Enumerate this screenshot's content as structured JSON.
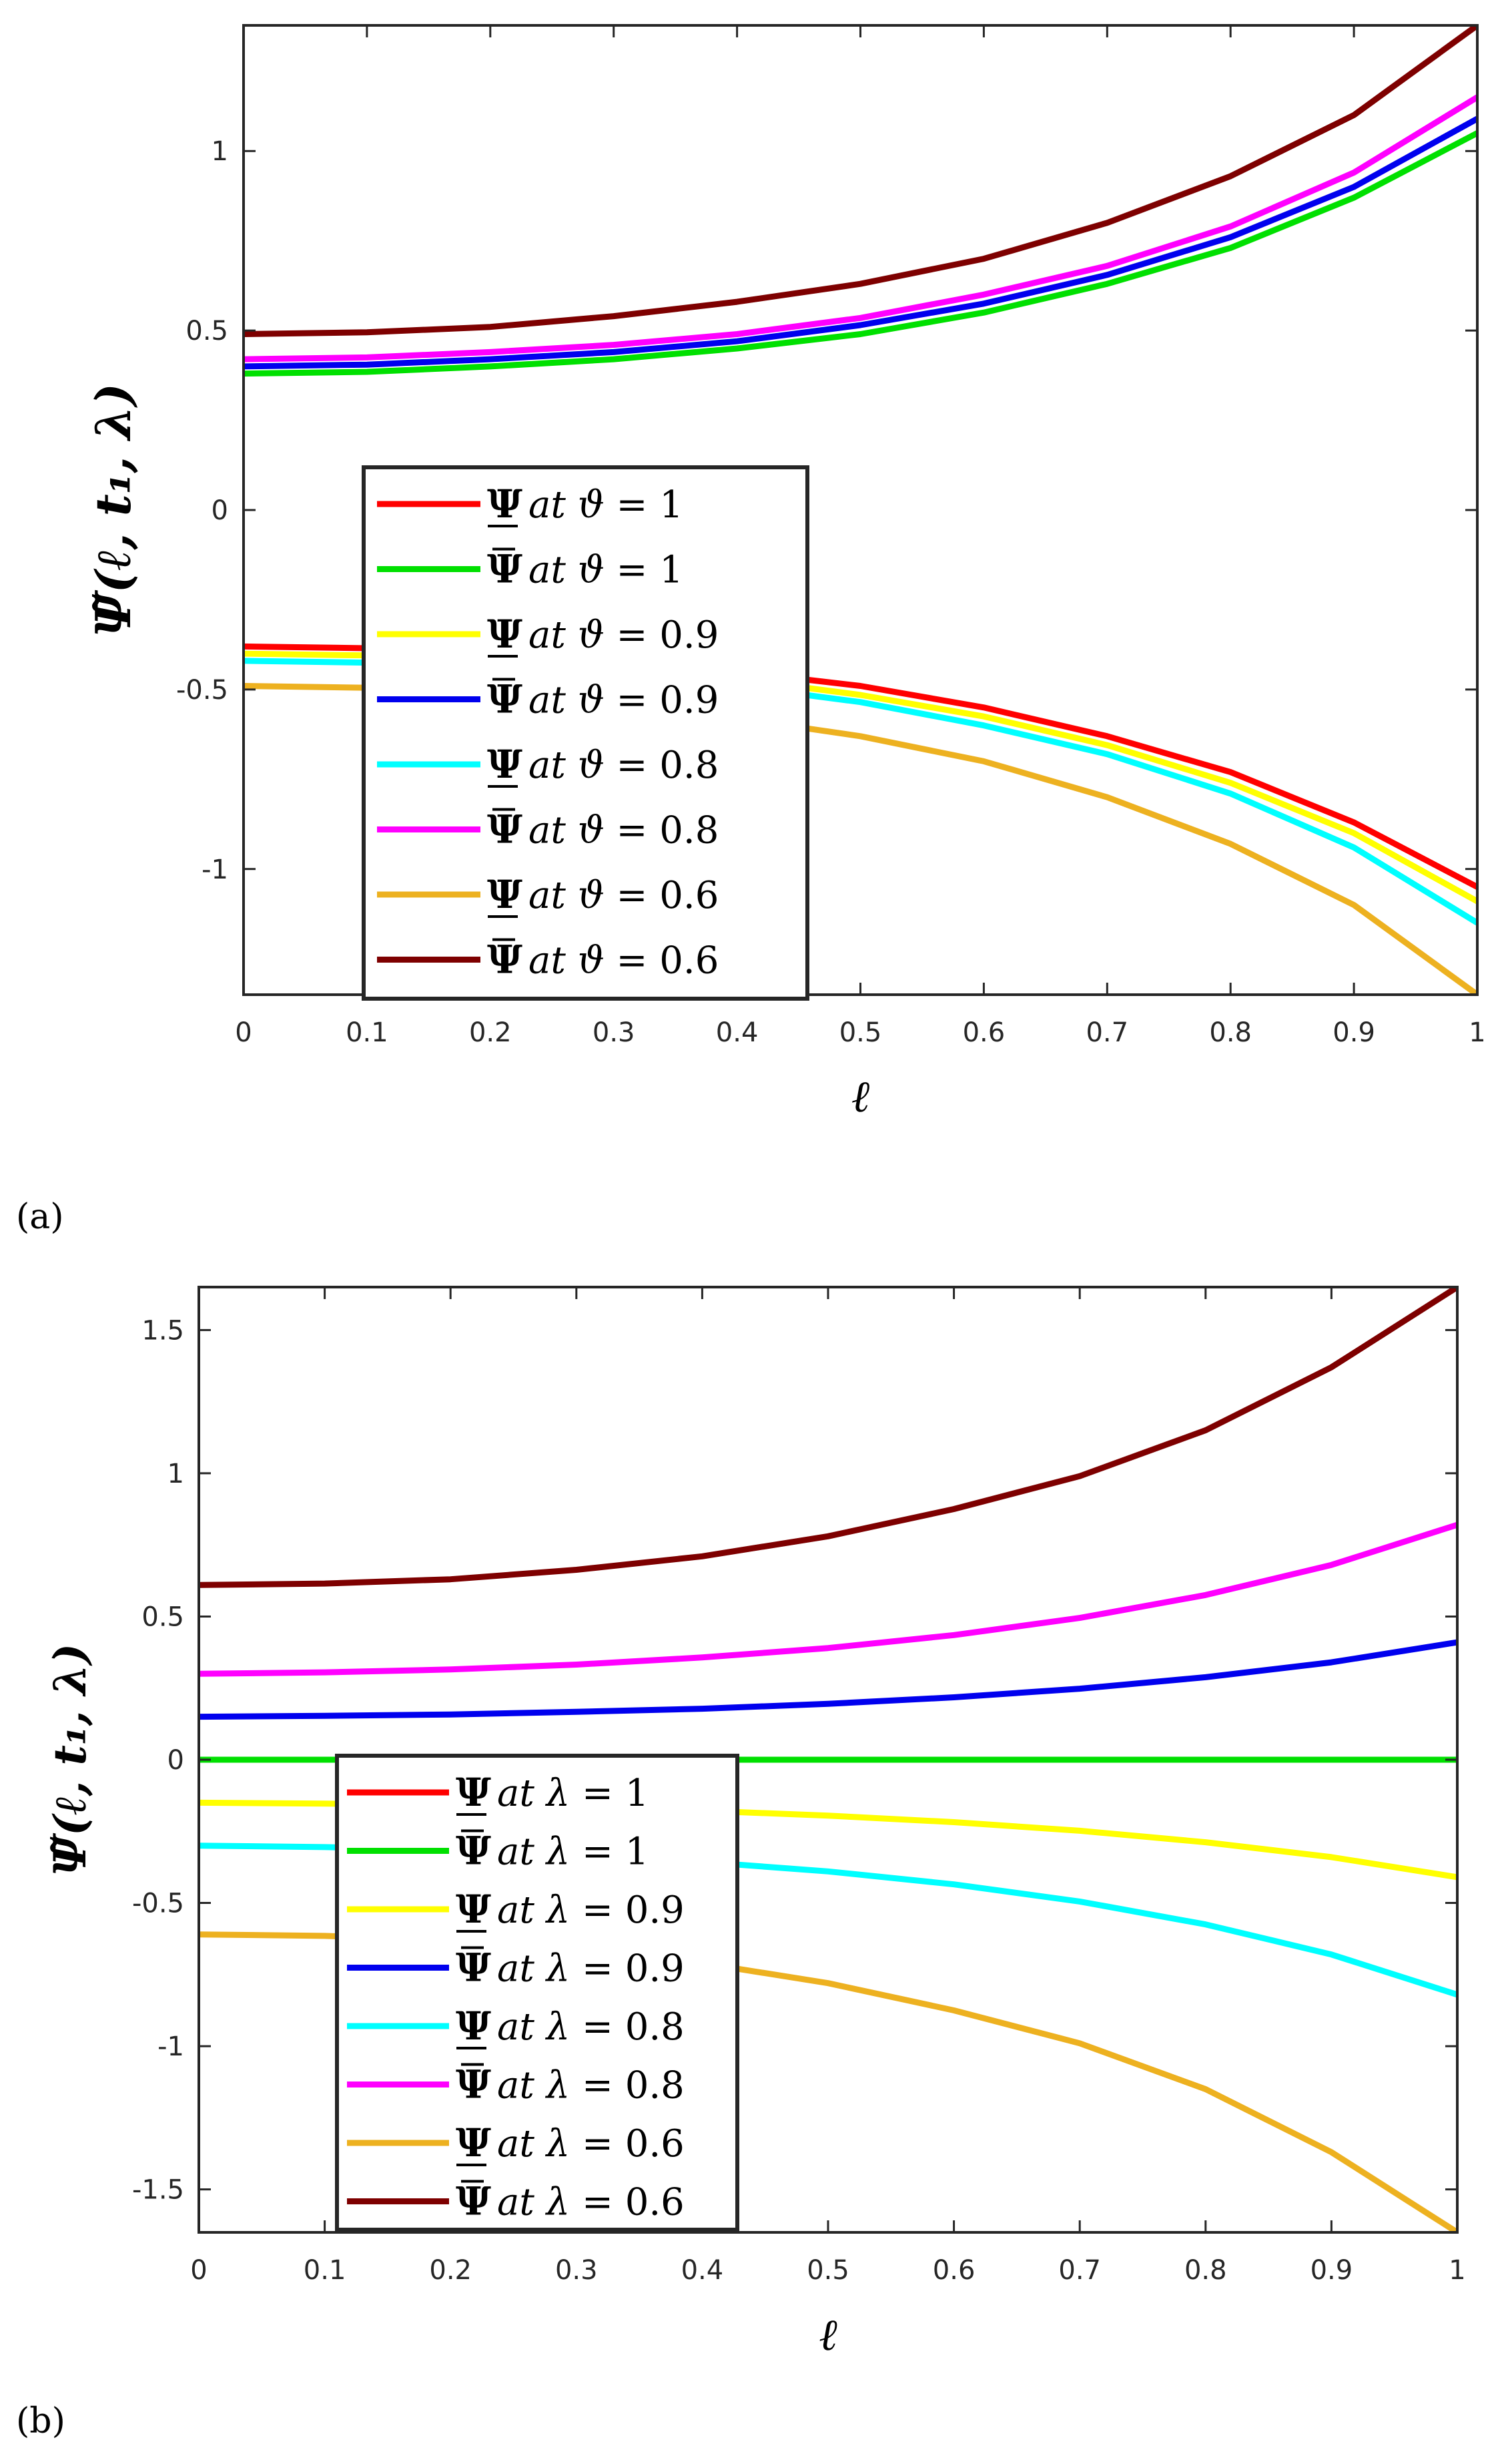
{
  "chart_data": [
    {
      "type": "line",
      "panel_label": "(a)",
      "xlabel": "ℓ",
      "ylabel": "Ψ̃(ℓ, t₁, λ)",
      "xlim": [
        0,
        1
      ],
      "ylim": [
        -1.35,
        1.35
      ],
      "xticks": [
        "0",
        "0.1",
        "0.2",
        "0.3",
        "0.4",
        "0.5",
        "0.6",
        "0.7",
        "0.8",
        "0.9",
        "1"
      ],
      "yticks": [
        {
          "value": 1,
          "label": "1"
        },
        {
          "value": 0.5,
          "label": "0.5"
        },
        {
          "value": 0,
          "label": "0"
        },
        {
          "value": -0.5,
          "label": "-0.5"
        },
        {
          "value": -1,
          "label": "-1"
        }
      ],
      "legend_position": "center-left",
      "x": [
        0,
        0.1,
        0.2,
        0.3,
        0.4,
        0.5,
        0.6,
        0.7,
        0.8,
        0.9,
        1
      ],
      "series": [
        {
          "name": "Ψ at ϑ = 1",
          "symbol": "Ψ",
          "bound": "lower",
          "param": "ϑ",
          "value": "1",
          "color": "#ff0000",
          "values": [
            -0.38,
            -0.385,
            -0.4,
            -0.42,
            -0.45,
            -0.49,
            -0.55,
            -0.63,
            -0.73,
            -0.87,
            -1.05
          ]
        },
        {
          "name": "Ψ̄ at ϑ = 1",
          "symbol": "Ψ",
          "bound": "upper",
          "param": "ϑ",
          "value": "1",
          "color": "#00e000",
          "values": [
            0.38,
            0.385,
            0.4,
            0.42,
            0.45,
            0.49,
            0.55,
            0.63,
            0.73,
            0.87,
            1.05
          ]
        },
        {
          "name": "Ψ at ϑ = 0.9",
          "symbol": "Ψ",
          "bound": "lower",
          "param": "ϑ",
          "value": "0.9",
          "color": "#ffff00",
          "values": [
            -0.4,
            -0.405,
            -0.42,
            -0.44,
            -0.47,
            -0.515,
            -0.575,
            -0.655,
            -0.76,
            -0.9,
            -1.09
          ]
        },
        {
          "name": "Ψ̄ at ϑ = 0.9",
          "symbol": "Ψ",
          "bound": "upper",
          "param": "ϑ",
          "value": "0.9",
          "color": "#0000ee",
          "values": [
            0.4,
            0.405,
            0.42,
            0.44,
            0.47,
            0.515,
            0.575,
            0.655,
            0.76,
            0.9,
            1.09
          ]
        },
        {
          "name": "Ψ at ϑ = 0.8",
          "symbol": "Ψ",
          "bound": "lower",
          "param": "ϑ",
          "value": "0.8",
          "color": "#00ffff",
          "values": [
            -0.42,
            -0.425,
            -0.44,
            -0.46,
            -0.49,
            -0.535,
            -0.6,
            -0.68,
            -0.79,
            -0.94,
            -1.15
          ]
        },
        {
          "name": "Ψ̄ at ϑ = 0.8",
          "symbol": "Ψ",
          "bound": "upper",
          "param": "ϑ",
          "value": "0.8",
          "color": "#ff00ff",
          "values": [
            0.42,
            0.425,
            0.44,
            0.46,
            0.49,
            0.535,
            0.6,
            0.68,
            0.79,
            0.94,
            1.15
          ]
        },
        {
          "name": "Ψ at ϑ = 0.6",
          "symbol": "Ψ",
          "bound": "lower",
          "param": "ϑ",
          "value": "0.6",
          "color": "#edb120",
          "values": [
            -0.49,
            -0.495,
            -0.51,
            -0.54,
            -0.58,
            -0.63,
            -0.7,
            -0.8,
            -0.93,
            -1.1,
            -1.35
          ]
        },
        {
          "name": "Ψ̄ at ϑ = 0.6",
          "symbol": "Ψ",
          "bound": "upper",
          "param": "ϑ",
          "value": "0.6",
          "color": "#7e0000",
          "values": [
            0.49,
            0.495,
            0.51,
            0.54,
            0.58,
            0.63,
            0.7,
            0.8,
            0.93,
            1.1,
            1.35
          ]
        }
      ]
    },
    {
      "type": "line",
      "panel_label": "(b)",
      "xlabel": "ℓ",
      "ylabel": "Ψ̃(ℓ, t₁, λ)",
      "xlim": [
        0,
        1
      ],
      "ylim": [
        -1.65,
        1.65
      ],
      "xticks": [
        "0",
        "0.1",
        "0.2",
        "0.3",
        "0.4",
        "0.5",
        "0.6",
        "0.7",
        "0.8",
        "0.9",
        "1"
      ],
      "yticks": [
        {
          "value": 1.5,
          "label": "1.5"
        },
        {
          "value": 1,
          "label": "1"
        },
        {
          "value": 0.5,
          "label": "0.5"
        },
        {
          "value": 0,
          "label": "0"
        },
        {
          "value": -0.5,
          "label": "-0.5"
        },
        {
          "value": -1,
          "label": "-1"
        },
        {
          "value": -1.5,
          "label": "-1.5"
        }
      ],
      "legend_position": "lower-left",
      "x": [
        0,
        0.1,
        0.2,
        0.3,
        0.4,
        0.5,
        0.6,
        0.7,
        0.8,
        0.9,
        1
      ],
      "series": [
        {
          "name": "Ψ at λ = 1",
          "symbol": "Ψ",
          "bound": "lower",
          "param": "λ",
          "value": "1",
          "color": "#ff0000",
          "values": [
            0,
            0,
            0,
            0,
            0,
            0,
            0,
            0,
            0,
            0,
            0
          ]
        },
        {
          "name": "Ψ̄ at λ = 1",
          "symbol": "Ψ",
          "bound": "upper",
          "param": "λ",
          "value": "1",
          "color": "#00e000",
          "values": [
            0,
            0,
            0,
            0,
            0,
            0,
            0,
            0,
            0,
            0,
            0
          ]
        },
        {
          "name": "Ψ at λ = 0.9",
          "symbol": "Ψ",
          "bound": "lower",
          "param": "λ",
          "value": "0.9",
          "color": "#ffff00",
          "values": [
            -0.15,
            -0.153,
            -0.158,
            -0.167,
            -0.178,
            -0.195,
            -0.218,
            -0.248,
            -0.288,
            -0.34,
            -0.41
          ]
        },
        {
          "name": "Ψ̄ at λ = 0.9",
          "symbol": "Ψ",
          "bound": "upper",
          "param": "λ",
          "value": "0.9",
          "color": "#0000ee",
          "values": [
            0.15,
            0.153,
            0.158,
            0.167,
            0.178,
            0.195,
            0.218,
            0.248,
            0.288,
            0.34,
            0.41
          ]
        },
        {
          "name": "Ψ at λ = 0.8",
          "symbol": "Ψ",
          "bound": "lower",
          "param": "λ",
          "value": "0.8",
          "color": "#00ffff",
          "values": [
            -0.3,
            -0.305,
            -0.315,
            -0.332,
            -0.357,
            -0.39,
            -0.435,
            -0.495,
            -0.575,
            -0.68,
            -0.82
          ]
        },
        {
          "name": "Ψ̄ at λ = 0.8",
          "symbol": "Ψ",
          "bound": "upper",
          "param": "λ",
          "value": "0.8",
          "color": "#ff00ff",
          "values": [
            0.3,
            0.305,
            0.315,
            0.332,
            0.357,
            0.39,
            0.435,
            0.495,
            0.575,
            0.68,
            0.82
          ]
        },
        {
          "name": "Ψ at λ = 0.6",
          "symbol": "Ψ",
          "bound": "lower",
          "param": "λ",
          "value": "0.6",
          "color": "#edb120",
          "values": [
            -0.61,
            -0.615,
            -0.63,
            -0.663,
            -0.71,
            -0.78,
            -0.875,
            -0.99,
            -1.15,
            -1.37,
            -1.65
          ]
        },
        {
          "name": "Ψ̄ at λ = 0.6",
          "symbol": "Ψ",
          "bound": "upper",
          "param": "λ",
          "value": "0.6",
          "color": "#7e0000",
          "values": [
            0.61,
            0.615,
            0.63,
            0.663,
            0.71,
            0.78,
            0.875,
            0.99,
            1.15,
            1.37,
            1.65
          ]
        }
      ]
    }
  ]
}
